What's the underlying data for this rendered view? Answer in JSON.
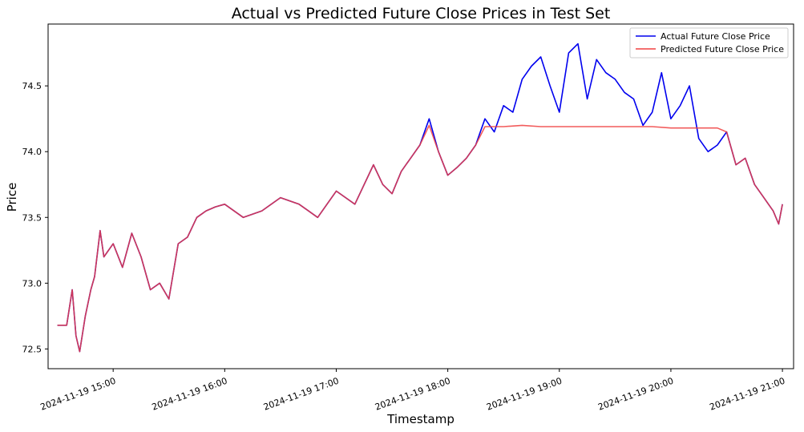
{
  "chart_data": {
    "type": "line",
    "title": "Actual vs Predicted Future Close Prices in Test Set",
    "xlabel": "Timestamp",
    "ylabel": "Price",
    "xlim": [
      "2024-11-19 14:25",
      "2024-11-19 21:06"
    ],
    "ylim": [
      72.35,
      74.97
    ],
    "x_ticks": [
      "2024-11-19 15:00",
      "2024-11-19 16:00",
      "2024-11-19 17:00",
      "2024-11-19 18:00",
      "2024-11-19 19:00",
      "2024-11-19 20:00",
      "2024-11-19 21:00"
    ],
    "y_ticks": [
      "72.5",
      "73.0",
      "73.5",
      "74.0",
      "74.5"
    ],
    "grid": false,
    "legend_position": "top-right",
    "series": [
      {
        "name": "Actual Future Close Price",
        "color": "#0000ee",
        "x": [
          "2024-11-19 14:30",
          "2024-11-19 14:35",
          "2024-11-19 14:38",
          "2024-11-19 14:40",
          "2024-11-19 14:42",
          "2024-11-19 14:45",
          "2024-11-19 14:48",
          "2024-11-19 14:50",
          "2024-11-19 14:53",
          "2024-11-19 14:55",
          "2024-11-19 15:00",
          "2024-11-19 15:05",
          "2024-11-19 15:10",
          "2024-11-19 15:15",
          "2024-11-19 15:20",
          "2024-11-19 15:25",
          "2024-11-19 15:30",
          "2024-11-19 15:35",
          "2024-11-19 15:40",
          "2024-11-19 15:45",
          "2024-11-19 15:50",
          "2024-11-19 15:55",
          "2024-11-19 16:00",
          "2024-11-19 16:10",
          "2024-11-19 16:20",
          "2024-11-19 16:30",
          "2024-11-19 16:40",
          "2024-11-19 16:50",
          "2024-11-19 17:00",
          "2024-11-19 17:10",
          "2024-11-19 17:20",
          "2024-11-19 17:25",
          "2024-11-19 17:30",
          "2024-11-19 17:35",
          "2024-11-19 17:40",
          "2024-11-19 17:45",
          "2024-11-19 17:50",
          "2024-11-19 17:55",
          "2024-11-19 18:00",
          "2024-11-19 18:05",
          "2024-11-19 18:10",
          "2024-11-19 18:15",
          "2024-11-19 18:20",
          "2024-11-19 18:25",
          "2024-11-19 18:30",
          "2024-11-19 18:35",
          "2024-11-19 18:40",
          "2024-11-19 18:45",
          "2024-11-19 18:50",
          "2024-11-19 18:55",
          "2024-11-19 19:00",
          "2024-11-19 19:05",
          "2024-11-19 19:10",
          "2024-11-19 19:15",
          "2024-11-19 19:20",
          "2024-11-19 19:25",
          "2024-11-19 19:30",
          "2024-11-19 19:35",
          "2024-11-19 19:40",
          "2024-11-19 19:45",
          "2024-11-19 19:50",
          "2024-11-19 19:55",
          "2024-11-19 20:00",
          "2024-11-19 20:05",
          "2024-11-19 20:10",
          "2024-11-19 20:15",
          "2024-11-19 20:20",
          "2024-11-19 20:25",
          "2024-11-19 20:30",
          "2024-11-19 20:35",
          "2024-11-19 20:40",
          "2024-11-19 20:45",
          "2024-11-19 20:50",
          "2024-11-19 20:55",
          "2024-11-19 20:58",
          "2024-11-19 21:00"
        ],
        "values": [
          72.68,
          72.68,
          72.95,
          72.6,
          72.48,
          72.75,
          72.95,
          73.05,
          73.4,
          73.2,
          73.3,
          73.12,
          73.38,
          73.2,
          72.95,
          73.0,
          72.88,
          73.3,
          73.35,
          73.5,
          73.55,
          73.58,
          73.6,
          73.5,
          73.55,
          73.65,
          73.6,
          73.5,
          73.7,
          73.6,
          73.9,
          73.75,
          73.68,
          73.85,
          73.95,
          74.05,
          74.25,
          74.0,
          73.82,
          73.88,
          73.95,
          74.05,
          74.25,
          74.15,
          74.35,
          74.3,
          74.55,
          74.65,
          74.72,
          74.5,
          74.3,
          74.75,
          74.82,
          74.4,
          74.7,
          74.6,
          74.55,
          74.45,
          74.4,
          74.2,
          74.3,
          74.6,
          74.25,
          74.35,
          74.5,
          74.1,
          74.0,
          74.05,
          74.15,
          73.9,
          73.95,
          73.75,
          73.65,
          73.55,
          73.45,
          73.6
        ]
      },
      {
        "name": "Predicted Future Close Price",
        "color": "#f04040",
        "x": [
          "2024-11-19 14:30",
          "2024-11-19 14:35",
          "2024-11-19 14:38",
          "2024-11-19 14:40",
          "2024-11-19 14:42",
          "2024-11-19 14:45",
          "2024-11-19 14:48",
          "2024-11-19 14:50",
          "2024-11-19 14:53",
          "2024-11-19 14:55",
          "2024-11-19 15:00",
          "2024-11-19 15:05",
          "2024-11-19 15:10",
          "2024-11-19 15:15",
          "2024-11-19 15:20",
          "2024-11-19 15:25",
          "2024-11-19 15:30",
          "2024-11-19 15:35",
          "2024-11-19 15:40",
          "2024-11-19 15:45",
          "2024-11-19 15:50",
          "2024-11-19 15:55",
          "2024-11-19 16:00",
          "2024-11-19 16:10",
          "2024-11-19 16:20",
          "2024-11-19 16:30",
          "2024-11-19 16:40",
          "2024-11-19 16:50",
          "2024-11-19 17:00",
          "2024-11-19 17:10",
          "2024-11-19 17:20",
          "2024-11-19 17:25",
          "2024-11-19 17:30",
          "2024-11-19 17:35",
          "2024-11-19 17:40",
          "2024-11-19 17:45",
          "2024-11-19 17:50",
          "2024-11-19 17:55",
          "2024-11-19 18:00",
          "2024-11-19 18:05",
          "2024-11-19 18:10",
          "2024-11-19 18:15",
          "2024-11-19 18:20",
          "2024-11-19 18:30",
          "2024-11-19 18:40",
          "2024-11-19 18:50",
          "2024-11-19 19:00",
          "2024-11-19 19:10",
          "2024-11-19 19:20",
          "2024-11-19 19:30",
          "2024-11-19 19:40",
          "2024-11-19 19:50",
          "2024-11-19 20:00",
          "2024-11-19 20:10",
          "2024-11-19 20:20",
          "2024-11-19 20:25",
          "2024-11-19 20:30",
          "2024-11-19 20:35",
          "2024-11-19 20:40",
          "2024-11-19 20:45",
          "2024-11-19 20:50",
          "2024-11-19 20:55",
          "2024-11-19 20:58",
          "2024-11-19 21:00"
        ],
        "values": [
          72.68,
          72.68,
          72.95,
          72.6,
          72.48,
          72.75,
          72.95,
          73.05,
          73.4,
          73.2,
          73.3,
          73.12,
          73.38,
          73.2,
          72.95,
          73.0,
          72.88,
          73.3,
          73.35,
          73.5,
          73.55,
          73.58,
          73.6,
          73.5,
          73.55,
          73.65,
          73.6,
          73.5,
          73.7,
          73.6,
          73.9,
          73.75,
          73.68,
          73.85,
          73.95,
          74.05,
          74.2,
          74.0,
          73.82,
          73.88,
          73.95,
          74.05,
          74.19,
          74.19,
          74.2,
          74.19,
          74.19,
          74.19,
          74.19,
          74.19,
          74.19,
          74.19,
          74.18,
          74.18,
          74.18,
          74.18,
          74.15,
          73.9,
          73.95,
          73.75,
          73.65,
          73.55,
          73.45,
          73.6
        ]
      }
    ]
  }
}
